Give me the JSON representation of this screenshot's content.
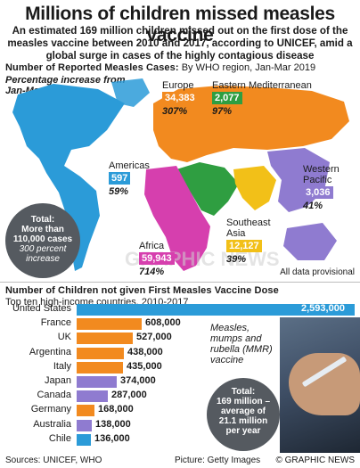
{
  "header": {
    "title": "Millions of children missed measles vaccine",
    "intro": "An estimated 169 million children missed out on the first dose of the measles vaccine between 2010 and 2017, according to UNICEF, amid a global surge in cases of the highly contagious disease"
  },
  "map_section": {
    "heading_bold": "Number of Reported Measles Cases:",
    "heading_rest": " By WHO region, Jan-Mar 2019",
    "pct_note_line1": "Percentage increase from",
    "pct_note_line2": "Jan-Mar 2018",
    "provisional": "All data provisional",
    "total": {
      "line1": "Total:",
      "line2": "More than",
      "line3": "110,000 cases",
      "line4": "300 percent",
      "line5": "increase"
    },
    "regions": [
      {
        "name": "Europe",
        "cases": "34,383",
        "pct": "307%",
        "color": "#f28a1f"
      },
      {
        "name": "Eastern Mediterranean",
        "cases": "2,077",
        "pct": "97%",
        "color": "#2f9e41"
      },
      {
        "name": "Americas",
        "cases": "597",
        "pct": "59%",
        "color": "#2b9bd8"
      },
      {
        "name": "Western Pacific",
        "cases": "3,036",
        "pct": "41%",
        "color": "#8f7bd0"
      },
      {
        "name": "Africa",
        "cases": "59,943",
        "pct": "714%",
        "color": "#d63fae"
      },
      {
        "name": "Southeast Asia",
        "cases": "12,127",
        "pct": "39%",
        "color": "#f2c018"
      }
    ],
    "watermark": "GRAPHIC NEWS"
  },
  "chart_data": {
    "type": "bar",
    "title": "Number of Children not given First Measles Vaccine Dose",
    "subtitle": "Top ten high-income countries, 2010-2017",
    "categories": [
      "United States",
      "France",
      "UK",
      "Argentina",
      "Italy",
      "Japan",
      "Canada",
      "Germany",
      "Australia",
      "Chile"
    ],
    "values": [
      2593000,
      608000,
      527000,
      438000,
      435000,
      374000,
      287000,
      168000,
      138000,
      136000
    ],
    "value_labels": [
      "2,593,000",
      "608,000",
      "527,000",
      "438,000",
      "435,000",
      "374,000",
      "287,000",
      "168,000",
      "138,000",
      "136,000"
    ],
    "colors": [
      "#2b9bd8",
      "#f28a1f",
      "#f28a1f",
      "#f28a1f",
      "#f28a1f",
      "#8f7bd0",
      "#8f7bd0",
      "#f28a1f",
      "#8f7bd0",
      "#2b9bd8"
    ],
    "xlabel": "",
    "ylabel": ""
  },
  "chart_annotations": {
    "mmr_line1": "Measles,",
    "mmr_line2": "mumps and",
    "mmr_line3": "rubella (MMR)",
    "mmr_line4": "vaccine",
    "total_line1": "Total:",
    "total_line2": "169 million –",
    "total_line3": "average of",
    "total_line4": "21.1 million",
    "total_line5": "per year"
  },
  "footer": {
    "sources": "Sources: UNICEF, WHO",
    "picture": "Picture: Getty Images",
    "credit": "© GRAPHIC NEWS"
  }
}
